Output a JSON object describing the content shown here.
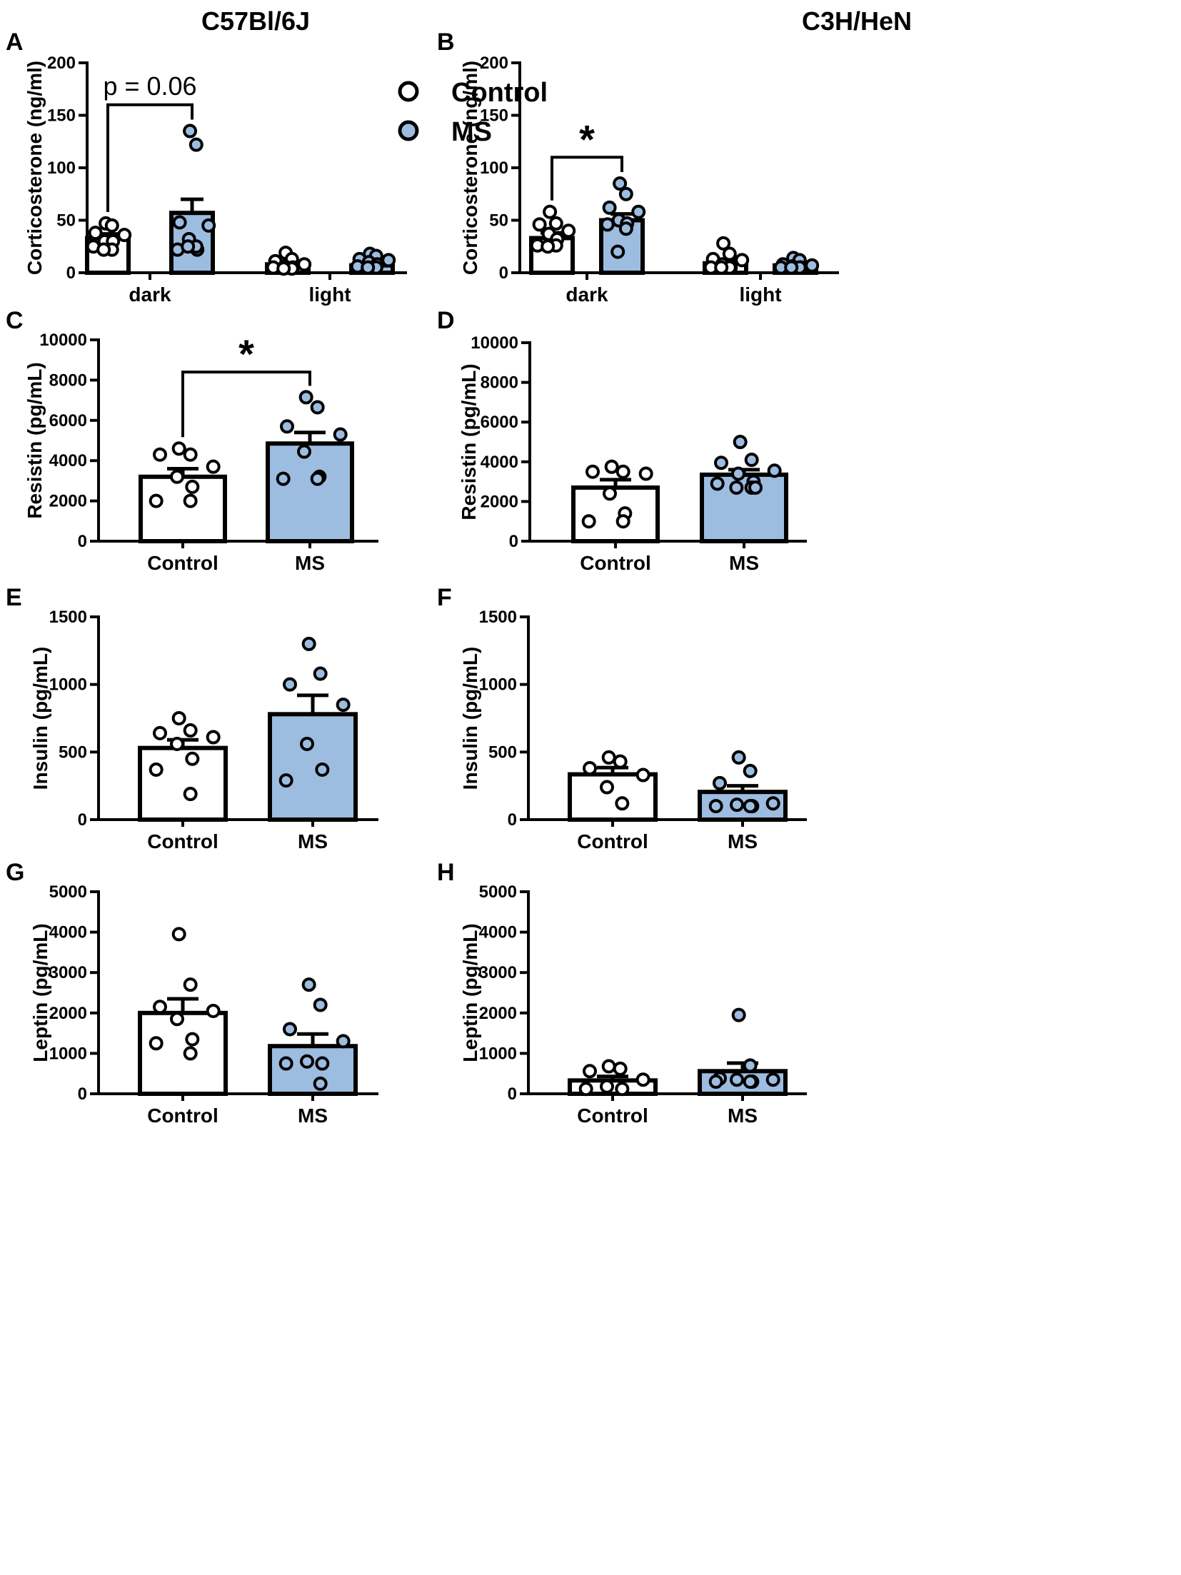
{
  "column_titles": [
    "C57Bl/6J",
    "C3H/HeN"
  ],
  "colors": {
    "control": "#ffffff",
    "ms": "#9dbde0",
    "stroke": "#000000"
  },
  "legend": {
    "items": [
      {
        "label": "Control",
        "color": "#ffffff"
      },
      {
        "label": "MS",
        "color": "#9dbde0"
      }
    ]
  },
  "chart_data": [
    {
      "panel": "A",
      "type": "bar",
      "strain": "C57Bl/6J",
      "ylabel": "Corticosterone (ng/ml)",
      "ylim": [
        0,
        200
      ],
      "yticks": [
        0,
        50,
        100,
        150,
        200
      ],
      "categories": [
        "dark",
        "light"
      ],
      "series": [
        {
          "name": "Control",
          "means": [
            33,
            8
          ],
          "sem": [
            4,
            2
          ],
          "points": [
            [
              47,
              45,
              38,
              36,
              30,
              30,
              25,
              22,
              22
            ],
            [
              19,
              13,
              11,
              8,
              6,
              5,
              5,
              4,
              4
            ]
          ]
        },
        {
          "name": "MS",
          "means": [
            57,
            7
          ],
          "sem": [
            13,
            2
          ],
          "points": [
            [
              135,
              122,
              48,
              45,
              32,
              22,
              22,
              25,
              25
            ],
            [
              18,
              16,
              13,
              12,
              10,
              8,
              6,
              5,
              5
            ]
          ]
        }
      ],
      "annotations": [
        {
          "type": "bracket",
          "group": 0,
          "text": "p = 0.06",
          "y": 160
        }
      ]
    },
    {
      "panel": "B",
      "type": "bar",
      "strain": "C3H/HeN",
      "ylabel": "Corticosterone (ng/ml)",
      "ylim": [
        0,
        200
      ],
      "yticks": [
        0,
        50,
        100,
        150,
        200
      ],
      "categories": [
        "dark",
        "light"
      ],
      "series": [
        {
          "name": "Control",
          "means": [
            33,
            9
          ],
          "sem": [
            5,
            3
          ],
          "points": [
            [
              58,
              47,
              46,
              40,
              37,
              32,
              26,
              26,
              25
            ],
            [
              28,
              18,
              13,
              12,
              8,
              5,
              5,
              5,
              5
            ]
          ]
        },
        {
          "name": "MS",
          "means": [
            50,
            7
          ],
          "sem": [
            6,
            2
          ],
          "points": [
            [
              85,
              75,
              62,
              58,
              50,
              47,
              46,
              42,
              20
            ],
            [
              14,
              12,
              8,
              7,
              6,
              5,
              5,
              5,
              5
            ]
          ]
        }
      ],
      "annotations": [
        {
          "type": "bracket",
          "group": 0,
          "text": "*",
          "y": 110
        }
      ]
    },
    {
      "panel": "C",
      "type": "bar",
      "strain": "C57Bl/6J",
      "ylabel": "Resistin (pg/mL)",
      "ylim": [
        0,
        10000
      ],
      "yticks": [
        0,
        2000,
        4000,
        6000,
        8000,
        10000
      ],
      "categories": [
        "Control",
        "MS"
      ],
      "series": [
        {
          "name": "Control",
          "means": [
            3200
          ],
          "sem": [
            400
          ],
          "points": [
            [
              4600,
              4300,
              4300,
              3700,
              3200,
              2700,
              2000,
              2000
            ]
          ]
        },
        {
          "name": "MS",
          "means": [
            4850
          ],
          "sem": [
            550
          ],
          "points": [
            [
              7150,
              6650,
              5700,
              5300,
              4450,
              3200,
              3100,
              3100
            ]
          ]
        }
      ],
      "annotations": [
        {
          "type": "bracket",
          "group": 0,
          "text": "*",
          "y": 8400
        }
      ]
    },
    {
      "panel": "D",
      "type": "bar",
      "strain": "C3H/HeN",
      "ylabel": "Resistin (pg/mL)",
      "ylim": [
        0,
        10000
      ],
      "yticks": [
        0,
        2000,
        4000,
        6000,
        8000,
        10000
      ],
      "categories": [
        "Control",
        "MS"
      ],
      "series": [
        {
          "name": "Control",
          "means": [
            2700
          ],
          "sem": [
            400
          ],
          "points": [
            [
              3750,
              3500,
              3500,
              3400,
              2400,
              1400,
              1000,
              1000
            ]
          ]
        },
        {
          "name": "MS",
          "means": [
            3350
          ],
          "sem": [
            250
          ],
          "points": [
            [
              5000,
              4100,
              3950,
              3550,
              3400,
              3000,
              2900,
              2700,
              2700,
              2700
            ]
          ]
        }
      ],
      "annotations": []
    },
    {
      "panel": "E",
      "type": "bar",
      "strain": "C57Bl/6J",
      "ylabel": "Insulin (pg/mL)",
      "ylim": [
        0,
        1500
      ],
      "yticks": [
        0,
        500,
        1000,
        1500
      ],
      "categories": [
        "Control",
        "MS"
      ],
      "series": [
        {
          "name": "Control",
          "means": [
            530
          ],
          "sem": [
            60
          ],
          "points": [
            [
              750,
              660,
              640,
              610,
              560,
              450,
              370,
              190
            ]
          ]
        },
        {
          "name": "MS",
          "means": [
            780
          ],
          "sem": [
            140
          ],
          "points": [
            [
              1300,
              1080,
              1000,
              850,
              560,
              370,
              290
            ]
          ]
        }
      ],
      "annotations": []
    },
    {
      "panel": "F",
      "type": "bar",
      "strain": "C3H/HeN",
      "ylabel": "Insulin (pg/mL)",
      "ylim": [
        0,
        1500
      ],
      "yticks": [
        0,
        500,
        1000,
        1500
      ],
      "categories": [
        "Control",
        "MS"
      ],
      "series": [
        {
          "name": "Control",
          "means": [
            335
          ],
          "sem": [
            50
          ],
          "points": [
            [
              460,
              430,
              380,
              330,
              240,
              120
            ]
          ]
        },
        {
          "name": "MS",
          "means": [
            205
          ],
          "sem": [
            45
          ],
          "points": [
            [
              460,
              360,
              270,
              120,
              110,
              100,
              100,
              100
            ]
          ]
        }
      ],
      "annotations": []
    },
    {
      "panel": "G",
      "type": "bar",
      "strain": "C57Bl/6J",
      "ylabel": "Leptin (pg/mL)",
      "ylim": [
        0,
        5000
      ],
      "yticks": [
        0,
        1000,
        2000,
        3000,
        4000,
        5000
      ],
      "categories": [
        "Control",
        "MS"
      ],
      "series": [
        {
          "name": "Control",
          "means": [
            2000
          ],
          "sem": [
            350
          ],
          "points": [
            [
              3950,
              2700,
              2150,
              2050,
              1850,
              1350,
              1250,
              1000
            ]
          ]
        },
        {
          "name": "MS",
          "means": [
            1180
          ],
          "sem": [
            300
          ],
          "points": [
            [
              2700,
              2200,
              1600,
              1300,
              800,
              750,
              750,
              250
            ]
          ]
        }
      ],
      "annotations": []
    },
    {
      "panel": "H",
      "type": "bar",
      "strain": "C3H/HeN",
      "ylabel": "Leptin (pg/mL)",
      "ylim": [
        0,
        5000
      ],
      "yticks": [
        0,
        1000,
        2000,
        3000,
        4000,
        5000
      ],
      "categories": [
        "Control",
        "MS"
      ],
      "series": [
        {
          "name": "Control",
          "means": [
            330
          ],
          "sem": [
            100
          ],
          "points": [
            [
              680,
              620,
              560,
              350,
              180,
              120,
              120
            ]
          ]
        },
        {
          "name": "MS",
          "means": [
            560
          ],
          "sem": [
            200
          ],
          "points": [
            [
              1950,
              700,
              380,
              350,
              350,
              300,
              300,
              300
            ]
          ]
        }
      ],
      "annotations": []
    }
  ]
}
